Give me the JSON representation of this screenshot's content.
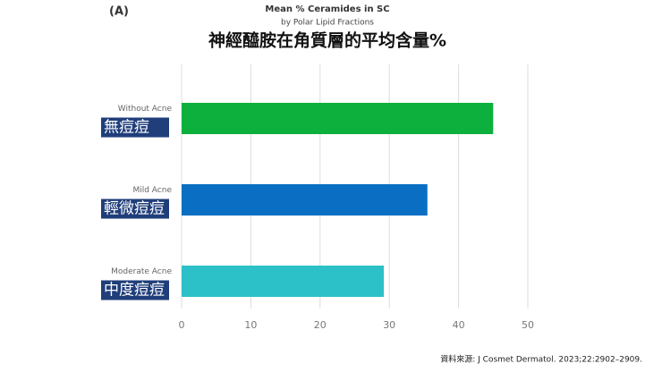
{
  "chart_data": {
    "type": "bar",
    "orientation": "horizontal",
    "panel_label": "(A)",
    "title": "Mean % Ceramides in SC",
    "subtitle": "by Polar Lipid Fractions",
    "title_zh": "神經醯胺在角質層的平均含量%",
    "categories": [
      "Without Acne",
      "Mild Acne",
      "Moderate Acne"
    ],
    "categories_zh": [
      "無痘痘",
      "輕微痘痘",
      "中度痘痘"
    ],
    "values": [
      45,
      35.5,
      29.2
    ],
    "colors": [
      "#0db03d",
      "#0a6fc2",
      "#2cc0c8"
    ],
    "xlim": [
      0,
      50
    ],
    "xticks": [
      0,
      10,
      20,
      30,
      40,
      50
    ],
    "grid": true,
    "source": "資料來源: J Cosmet Dermatol. 2023;22:2902–2909."
  }
}
